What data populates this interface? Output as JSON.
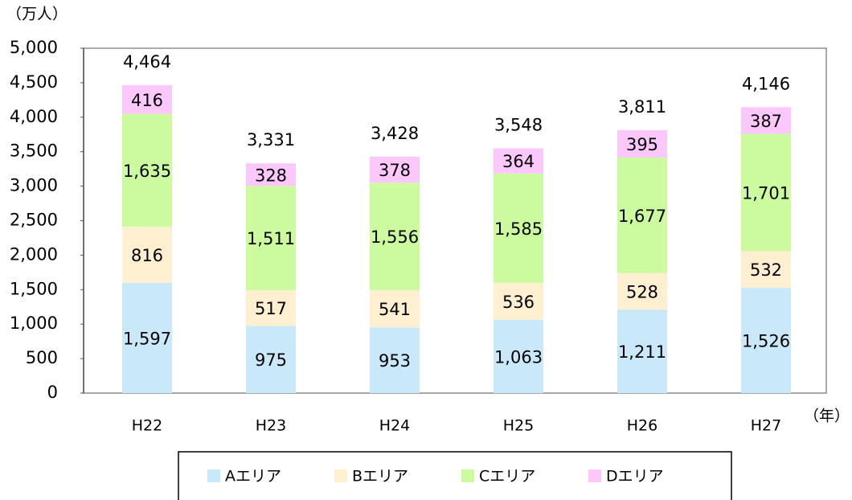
{
  "chart_data": {
    "type": "stacked-bar",
    "y_unit": "（万人）",
    "x_unit": "（年）",
    "categories": [
      "H22",
      "H23",
      "H24",
      "H25",
      "H26",
      "H27"
    ],
    "series": [
      {
        "name": "Aエリア",
        "color": "#c9e9fb",
        "values": [
          1597,
          975,
          953,
          1063,
          1211,
          1526
        ],
        "value_labels": [
          "1,597",
          "975",
          "953",
          "1,063",
          "1,211",
          "1,526"
        ]
      },
      {
        "name": "Bエリア",
        "color": "#fdefcf",
        "values": [
          816,
          517,
          541,
          536,
          528,
          532
        ],
        "value_labels": [
          "816",
          "517",
          "541",
          "536",
          "528",
          "532"
        ]
      },
      {
        "name": "Cエリア",
        "color": "#ccfa9e",
        "values": [
          1635,
          1511,
          1556,
          1585,
          1677,
          1701
        ],
        "value_labels": [
          "1,635",
          "1,511",
          "1,556",
          "1,585",
          "1,677",
          "1,701"
        ]
      },
      {
        "name": "Dエリア",
        "color": "#fcc8fc",
        "values": [
          416,
          328,
          378,
          364,
          395,
          387
        ],
        "value_labels": [
          "416",
          "328",
          "378",
          "364",
          "395",
          "387"
        ]
      }
    ],
    "totals": [
      4464,
      3331,
      3428,
      3548,
      3811,
      4146
    ],
    "total_labels": [
      "4,464",
      "3,331",
      "3,428",
      "3,548",
      "3,811",
      "4,146"
    ],
    "ylim": [
      0,
      5000
    ],
    "yticks": [
      0,
      {
        "value": 500,
        "label": "500"
      },
      {
        "value": 1000,
        "label": "1,000"
      },
      {
        "value": 1500,
        "label": "1,500"
      },
      {
        "value": 2000,
        "label": "2,000"
      },
      {
        "value": 2500,
        "label": "2,500"
      },
      {
        "value": 3000,
        "label": "3,000"
      },
      {
        "value": 3500,
        "label": "3,500"
      },
      {
        "value": 4000,
        "label": "4,000"
      },
      {
        "value": 4500,
        "label": "4,500"
      },
      {
        "value": 5000,
        "label": "5,000"
      }
    ],
    "grid": false
  }
}
